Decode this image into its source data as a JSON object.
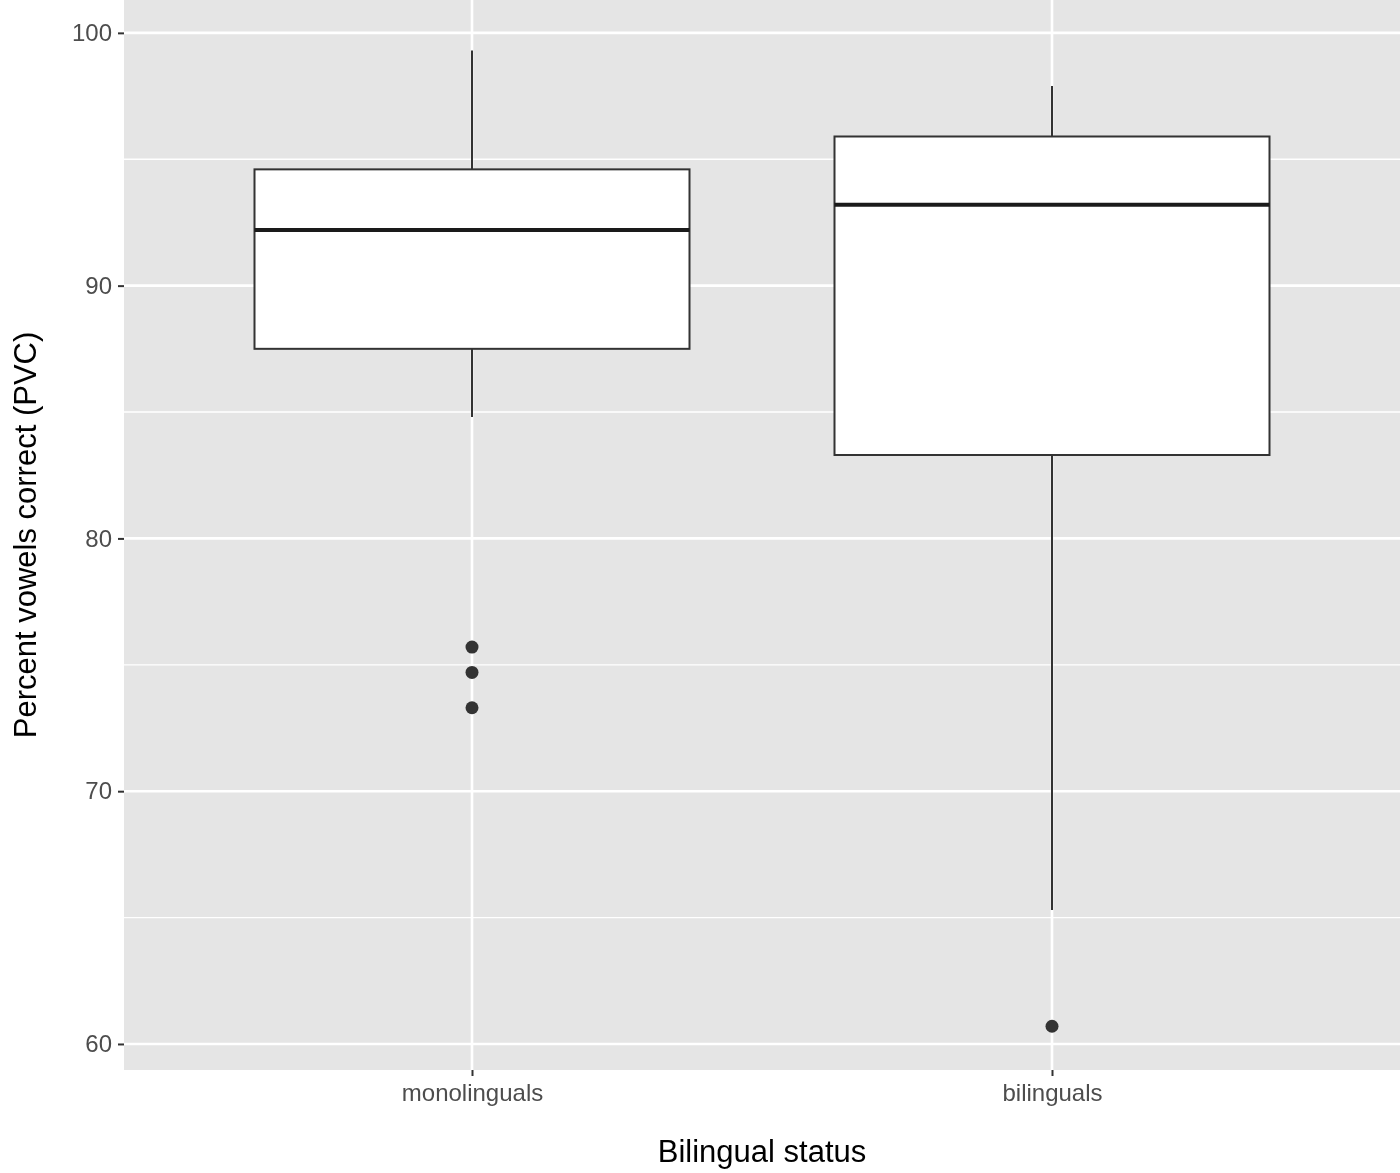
{
  "chart_data": {
    "type": "box",
    "xlabel": "Bilingual status",
    "ylabel": "Percent vowels correct (PVC)",
    "categories": [
      "monolinguals",
      "bilinguals"
    ],
    "boxes": [
      {
        "low": 84.8,
        "q1": 87.5,
        "median": 92.2,
        "q3": 94.6,
        "high": 99.3,
        "outliers": [
          75.7,
          74.7,
          73.3
        ]
      },
      {
        "low": 65.3,
        "q1": 83.3,
        "median": 93.2,
        "q3": 95.9,
        "high": 97.9,
        "outliers": [
          60.7
        ]
      }
    ],
    "ylim": [
      58.97,
      101.3
    ],
    "yticks": [
      60,
      {
        "value": 65,
        "label": null
      },
      70,
      {
        "value": 75,
        "label": null
      },
      80,
      {
        "value": 85,
        "label": null
      },
      90,
      {
        "value": 95,
        "label": null
      },
      100
    ],
    "grid": true
  }
}
